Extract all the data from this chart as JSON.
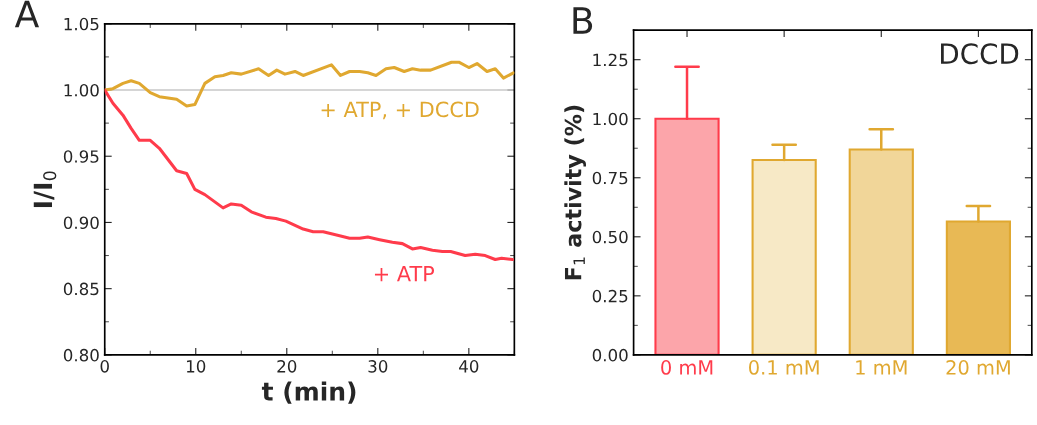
{
  "chart_data": [
    {
      "type": "line",
      "title": "A",
      "xlabel": "t (min)",
      "ylabel": "I/I$_{0}$",
      "xlim": [
        0,
        45
      ],
      "xticks": [
        0,
        10,
        20,
        30,
        40
      ],
      "ylim": [
        0.8,
        1.05
      ],
      "yticks": [
        {
          "value": 0.8,
          "label": "0.80"
        },
        {
          "value": 0.85,
          "label": "0.85"
        },
        {
          "value": 0.9,
          "label": "0.90"
        },
        {
          "value": 0.95,
          "label": "0.95"
        },
        {
          "value": 1.0,
          "label": "1.00"
        },
        {
          "value": 1.05,
          "label": "1.05"
        }
      ],
      "grid": false,
      "marker": "none",
      "line_style": "solid",
      "ref_lines": [
        {
          "axis": "y",
          "value": 1.0,
          "color": "#c8c8c8"
        }
      ],
      "series": [
        {
          "name": "+ ATP, + DCCD",
          "color": "#e0a830",
          "x": [
            0,
            0.9,
            2.0,
            2.9,
            3.8,
            5.0,
            6.0,
            7.9,
            9.0,
            9.9,
            11.0,
            12.1,
            13.0,
            13.9,
            15.0,
            16.9,
            18.0,
            18.9,
            19.8,
            20.9,
            21.8,
            24.9,
            25.9,
            26.9,
            28.0,
            28.9,
            29.8,
            30.9,
            31.8,
            32.9,
            33.8,
            34.7,
            35.8,
            38.1,
            38.9,
            40.0,
            40.9,
            42.0,
            42.9,
            43.8,
            44.9
          ],
          "values": [
            1.0,
            1.001,
            1.005,
            1.007,
            1.005,
            0.998,
            0.995,
            0.993,
            0.988,
            0.989,
            1.005,
            1.01,
            1.011,
            1.013,
            1.012,
            1.016,
            1.011,
            1.015,
            1.012,
            1.014,
            1.011,
            1.019,
            1.011,
            1.014,
            1.014,
            1.013,
            1.011,
            1.016,
            1.017,
            1.014,
            1.016,
            1.015,
            1.015,
            1.021,
            1.021,
            1.017,
            1.02,
            1.014,
            1.016,
            1.009,
            1.013
          ]
        },
        {
          "name": "+ ATP",
          "color": "#ff3b4b",
          "x": [
            0,
            0.9,
            2.0,
            2.9,
            3.8,
            5.0,
            6.0,
            7.9,
            9.0,
            9.9,
            11.0,
            13.0,
            13.9,
            15.0,
            16.1,
            17.7,
            18.8,
            19.9,
            21.8,
            22.9,
            24.0,
            25.8,
            26.9,
            28.0,
            28.9,
            30.2,
            31.6,
            32.7,
            33.8,
            34.7,
            36.0,
            37.1,
            38.0,
            39.6,
            40.7,
            41.8,
            42.9,
            43.6,
            44.8
          ],
          "values": [
            1.0,
            0.99,
            0.981,
            0.971,
            0.962,
            0.962,
            0.956,
            0.939,
            0.937,
            0.925,
            0.921,
            0.911,
            0.914,
            0.913,
            0.908,
            0.904,
            0.903,
            0.901,
            0.895,
            0.893,
            0.893,
            0.89,
            0.888,
            0.888,
            0.889,
            0.887,
            0.885,
            0.884,
            0.88,
            0.881,
            0.879,
            0.878,
            0.878,
            0.875,
            0.876,
            0.875,
            0.872,
            0.873,
            0.872
          ]
        }
      ]
    },
    {
      "type": "bar",
      "title": "B",
      "ylabel": "F$_{1}$ activity (%)",
      "categories": [
        "0 mM",
        "0.1 mM",
        "1 mM",
        "20 mM"
      ],
      "values": [
        1.0,
        0.825,
        0.87,
        0.565
      ],
      "colors": [
        "#fca5aa",
        "#f7e9c6",
        "#f1d699",
        "#e8b955"
      ],
      "errors": [
        [
          1.0,
          1.22
        ],
        [
          0.825,
          0.89
        ],
        [
          0.87,
          0.955
        ],
        [
          0.565,
          0.63
        ]
      ],
      "legend": false,
      "ylim": [
        0,
        1.375
      ],
      "yticks": [
        {
          "value": 0,
          "label": "0.00"
        },
        {
          "value": 0.25,
          "label": "0.25"
        },
        {
          "value": 0.5,
          "label": "0.50"
        },
        {
          "value": 0.75,
          "label": "0.75"
        },
        {
          "value": 1.0,
          "label": "1.00"
        },
        {
          "value": 1.25,
          "label": "1.25"
        }
      ],
      "grid": false,
      "annotations": [
        "DCCD"
      ]
    }
  ]
}
